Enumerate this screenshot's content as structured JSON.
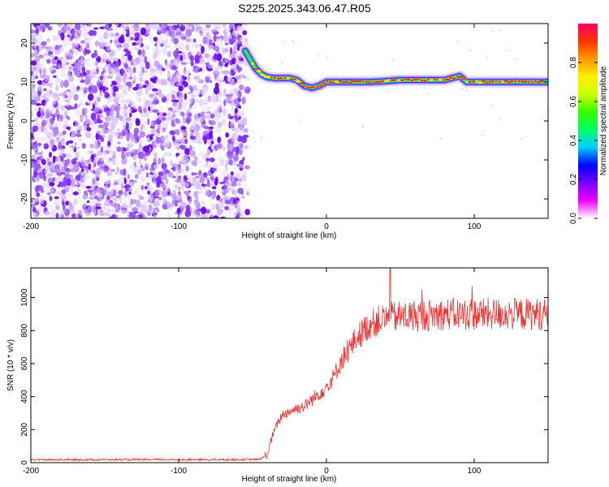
{
  "title": "S225.2025.343.06.47.R05",
  "chart_data": [
    {
      "type": "heatmap",
      "xlabel": "Height of straight line (km)",
      "ylabel": "Frequency (Hz)",
      "xlim": [
        -200,
        150
      ],
      "ylim": [
        -25,
        25
      ],
      "x_ticks": [
        -200,
        -100,
        0,
        100
      ],
      "y_ticks": [
        20,
        10,
        0,
        -10,
        -20
      ],
      "noise_region_x": [
        -200,
        -55
      ],
      "ridge": {
        "x": [
          -55,
          -52,
          -48,
          -44,
          -40,
          -35,
          -30,
          -25,
          -20,
          -15,
          -10,
          -5,
          0,
          10,
          20,
          30,
          40,
          50,
          60,
          70,
          80,
          90,
          95,
          100,
          110,
          120,
          130,
          140,
          150
        ],
        "y": [
          18,
          16,
          13.5,
          12,
          11.2,
          11,
          11,
          11,
          10.5,
          9,
          8.5,
          9,
          10,
          10,
          10,
          10,
          10.2,
          10.5,
          10.5,
          10.5,
          10.5,
          11.5,
          10,
          10,
          10,
          10,
          10,
          10,
          10
        ]
      },
      "colorbar": {
        "label": "Normalized spectral amplitude",
        "range": [
          0,
          1
        ],
        "ticks": [
          0.0,
          0.2,
          0.4,
          0.6,
          0.8
        ],
        "colors": [
          "#ffffff",
          "#ee00ff",
          "#7700ff",
          "#0000ff",
          "#00ccff",
          "#00ff66",
          "#33ff00",
          "#ccff00",
          "#ffee00",
          "#ff9900",
          "#ff3300",
          "#ff0066"
        ]
      }
    },
    {
      "type": "line",
      "xlabel": "Height of straight line (km)",
      "ylabel": "SNR (10 * v/v)",
      "xlim": [
        -200,
        150
      ],
      "ylim": [
        0,
        1180
      ],
      "x_ticks": [
        -200,
        -100,
        0,
        100
      ],
      "y_ticks": [
        0,
        200,
        400,
        600,
        800,
        1000
      ],
      "line_color": "#ee3333",
      "envelope": {
        "x": [
          -200,
          -60,
          -45,
          -40,
          -37,
          -35,
          -30,
          -25,
          -20,
          -15,
          -10,
          -5,
          0,
          5,
          10,
          15,
          20,
          25,
          30,
          35,
          40,
          45,
          50,
          60,
          70,
          80,
          90,
          100,
          110,
          120,
          130,
          140,
          150
        ],
        "y": [
          18,
          18,
          20,
          50,
          150,
          200,
          290,
          310,
          330,
          340,
          380,
          420,
          460,
          520,
          620,
          680,
          750,
          800,
          840,
          860,
          870,
          880,
          885,
          890,
          895,
          900,
          900,
          900,
          900,
          900,
          900,
          900,
          900
        ]
      },
      "peak": {
        "x": 43,
        "y": 1180
      }
    }
  ]
}
